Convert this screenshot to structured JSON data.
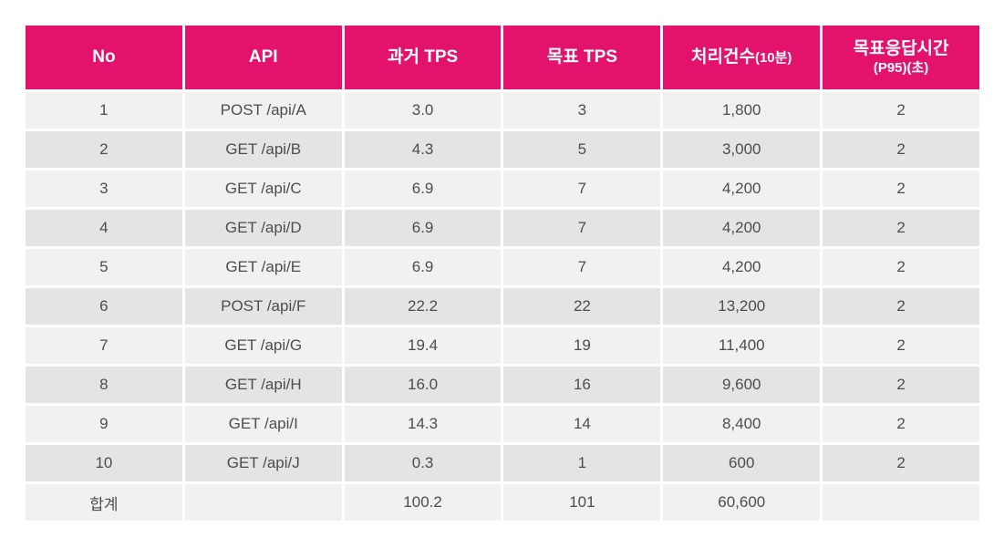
{
  "colors": {
    "header_bg": "#e3126c",
    "header_fg": "#ffffff",
    "row_light": "#f1f1f2",
    "row_dark": "#e4e4e6",
    "body_fg": "#4d4d4f",
    "gap": "#ffffff"
  },
  "table": {
    "columns": [
      {
        "key": "no",
        "label": "No",
        "sub": "",
        "sub_layout": "none"
      },
      {
        "key": "api",
        "label": "API",
        "sub": "",
        "sub_layout": "none"
      },
      {
        "key": "past-tps",
        "label": "과거 TPS",
        "sub": "",
        "sub_layout": "none"
      },
      {
        "key": "target-tps",
        "label": "목표 TPS",
        "sub": "",
        "sub_layout": "none"
      },
      {
        "key": "throughput",
        "label": "처리건수",
        "sub": "(10분)",
        "sub_layout": "inline"
      },
      {
        "key": "response-time",
        "label": "목표응답시간",
        "sub": "(P95)(초)",
        "sub_layout": "newline"
      }
    ],
    "rows": [
      [
        "1",
        "POST /api/A",
        "3.0",
        "3",
        "1,800",
        "2"
      ],
      [
        "2",
        "GET /api/B",
        "4.3",
        "5",
        "3,000",
        "2"
      ],
      [
        "3",
        "GET /api/C",
        "6.9",
        "7",
        "4,200",
        "2"
      ],
      [
        "4",
        "GET /api/D",
        "6.9",
        "7",
        "4,200",
        "2"
      ],
      [
        "5",
        "GET /api/E",
        "6.9",
        "7",
        "4,200",
        "2"
      ],
      [
        "6",
        "POST /api/F",
        "22.2",
        "22",
        "13,200",
        "2"
      ],
      [
        "7",
        "GET /api/G",
        "19.4",
        "19",
        "11,400",
        "2"
      ],
      [
        "8",
        "GET /api/H",
        "16.0",
        "16",
        "9,600",
        "2"
      ],
      [
        "9",
        "GET /api/I",
        "14.3",
        "14",
        "8,400",
        "2"
      ],
      [
        "10",
        "GET /api/J",
        "0.3",
        "1",
        "600",
        "2"
      ]
    ],
    "total_row": [
      "합계",
      "",
      "100.2",
      "101",
      "60,600",
      ""
    ]
  }
}
